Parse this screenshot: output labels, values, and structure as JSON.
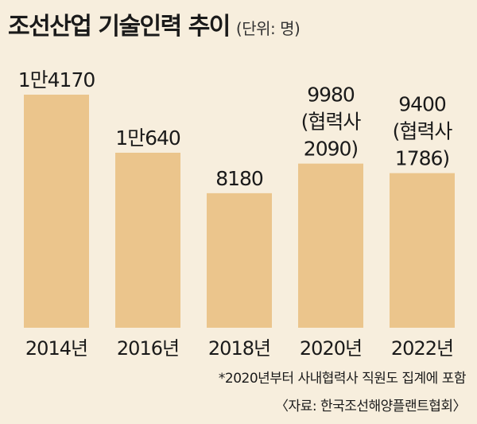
{
  "chart_data": {
    "type": "bar",
    "title": "조선산업 기술인력 추이",
    "unit_note": "(단위: 명)",
    "categories": [
      "2014년",
      "2016년",
      "2018년",
      "2020년",
      "2022년"
    ],
    "values": [
      14170,
      10640,
      8180,
      9980,
      9400
    ],
    "value_labels": [
      [
        "1만4170"
      ],
      [
        "1만640"
      ],
      [
        "8180"
      ],
      [
        "9980",
        "(협력사",
        "2090)"
      ],
      [
        "9400",
        "(협력사",
        "1786)"
      ]
    ],
    "bar_color": "#ebc58c",
    "grid": false,
    "footnotes": [
      "*2020년부터 사내협력사 직원도 집계에 포함",
      "〈자료: 한국조선해양플랜트협회〉"
    ]
  }
}
